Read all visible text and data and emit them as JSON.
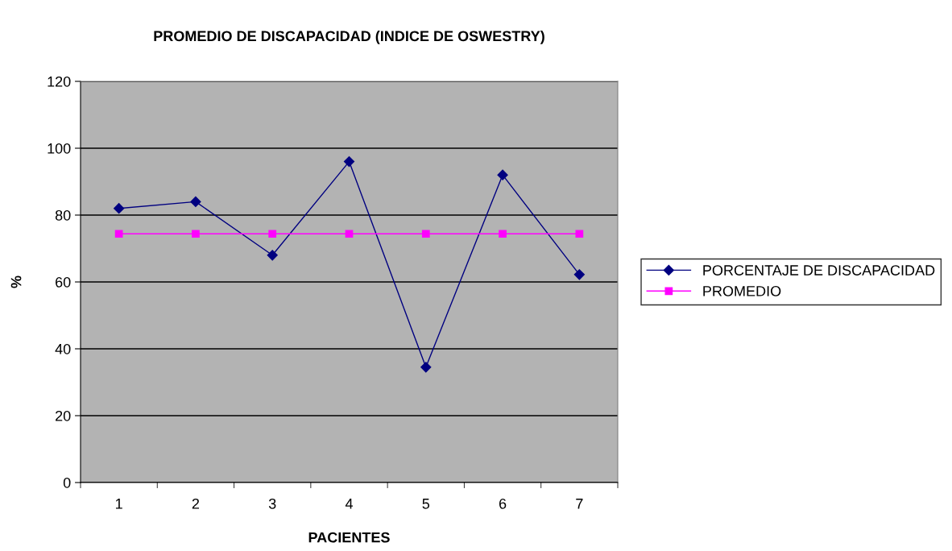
{
  "chart_data": {
    "type": "line",
    "title": "PROMEDIO DE DISCAPACIDAD (INDICE DE OSWESTRY)",
    "xlabel": "PACIENTES",
    "ylabel": "%",
    "categories": [
      "1",
      "2",
      "3",
      "4",
      "5",
      "6",
      "7"
    ],
    "series": [
      {
        "name": "PORCENTAJE DE DISCAPACIDAD",
        "color": "#000080",
        "marker": "diamond",
        "values": [
          82,
          84,
          68,
          96,
          34.5,
          92,
          62.2
        ]
      },
      {
        "name": "PROMEDIO",
        "color": "#ff00ff",
        "marker": "square",
        "values": [
          74.4,
          74.4,
          74.4,
          74.4,
          74.4,
          74.4,
          74.4
        ]
      }
    ],
    "ylim": [
      0,
      120
    ],
    "yticks": [
      0,
      20,
      40,
      60,
      80,
      100,
      120
    ],
    "grid": "y",
    "legend": "right",
    "line_style": "solid"
  }
}
